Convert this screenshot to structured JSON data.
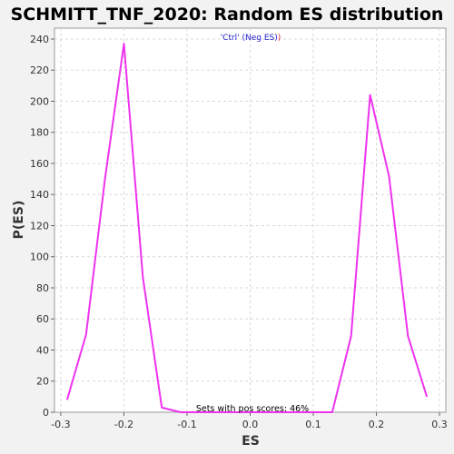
{
  "chart_data": {
    "type": "line",
    "title": "SCHMITT_TNF_2020: Random ES distribution",
    "xlabel": "ES",
    "ylabel": "P(ES)",
    "xlim": [
      -0.31,
      0.31
    ],
    "ylim": [
      0,
      247
    ],
    "x_ticks": [
      "-0.3",
      "-0.2",
      "-0.1",
      "0.0",
      "0.1",
      "0.2",
      "0.3"
    ],
    "x_tick_values": [
      -0.3,
      -0.2,
      -0.1,
      0.0,
      0.1,
      0.2,
      0.3
    ],
    "y_ticks": [
      "0",
      "20",
      "40",
      "60",
      "80",
      "100",
      "120",
      "140",
      "160",
      "180",
      "200",
      "220",
      "240"
    ],
    "y_tick_values": [
      0,
      20,
      40,
      60,
      80,
      100,
      120,
      140,
      160,
      180,
      200,
      220,
      240
    ],
    "grid": true,
    "legend": {
      "position": "top-center",
      "parts": [
        {
          "text": "'Ctrl' (Neg ES)",
          "color": "#2222cc"
        },
        {
          "text": ")",
          "color": "#dd2222"
        }
      ]
    },
    "annotation": "Sets with pos scores: 46%",
    "series": [
      {
        "color": "#ee33ee",
        "x": [
          -0.29,
          -0.26,
          -0.23,
          -0.2,
          -0.17,
          -0.14,
          -0.11,
          -0.08,
          0.13,
          0.16,
          0.19,
          0.22,
          0.25,
          0.28
        ],
        "y": [
          8,
          50,
          150,
          237,
          87,
          3,
          0,
          0,
          0,
          49,
          204,
          152,
          49,
          10
        ]
      }
    ]
  }
}
